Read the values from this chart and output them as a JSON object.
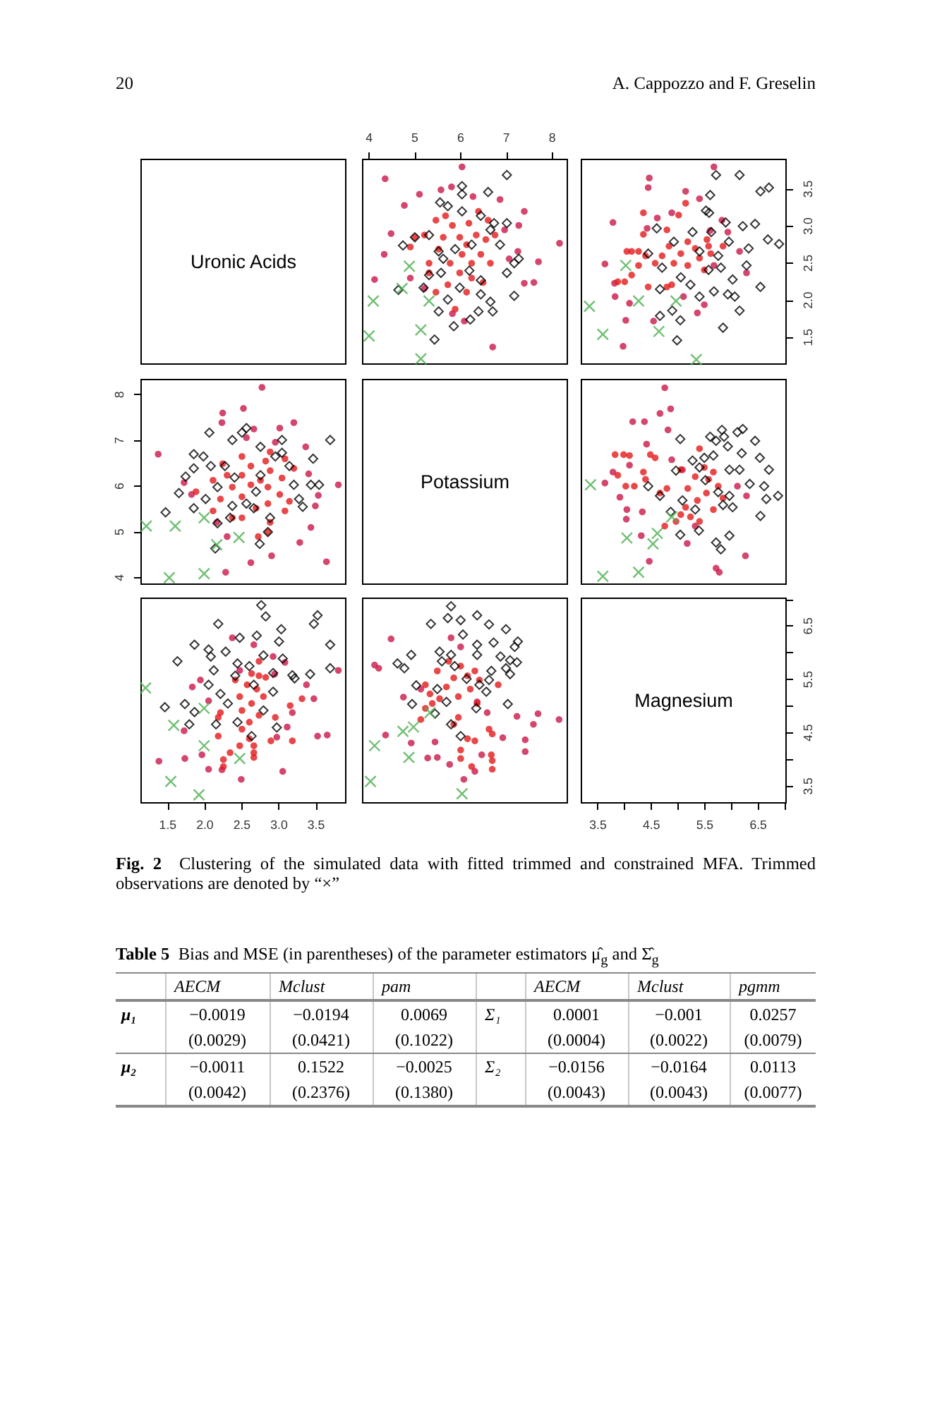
{
  "chart_data": [
    {
      "type": "other",
      "annotations": [
        "20",
        "A. Cappozzo and F. Greselin"
      ]
    },
    {
      "type": "other",
      "title": "Uronic Acids"
    },
    {
      "type": "scatter",
      "xlim": [
        3.86,
        8.33
      ],
      "xticks": [
        4,
        5,
        6,
        7,
        8
      ],
      "ylim": [
        1.14,
        3.9
      ],
      "tick_labels": "x",
      "series": [
        {
          "color": "#c9184a",
          "marker": "circle",
          "x": [
            4.35,
            6.03,
            5.1,
            4.77,
            4.48,
            4.33,
            4.12,
            5.8,
            6.27,
            7.39,
            7.27,
            8.16,
            7.7,
            7.6,
            7.39,
            7.25,
            6.7,
            6.86,
            5.57,
            4.9,
            5.82,
            6.08,
            5.21,
            6.96,
            7.06
          ],
          "values": [
            3.64,
            3.8,
            3.43,
            3.28,
            2.9,
            2.62,
            2.28,
            3.53,
            3.4,
            3.2,
            3.01,
            2.77,
            2.52,
            2.24,
            2.23,
            2.66,
            1.37,
            3.36,
            3.49,
            2.3,
            1.82,
            1.72,
            2.16,
            2.95,
            2.56
          ]
        },
        {
          "color": "#e41a1c",
          "marker": "circle",
          "x": [
            5.0,
            5.21,
            5.46,
            5.67,
            5.82,
            5.98,
            6.13,
            6.34,
            6.44,
            6.65,
            5.52,
            5.31,
            5.77,
            5.98,
            6.24,
            6.49,
            5.72,
            5.46,
            6.13,
            6.39,
            6.6,
            6.75,
            6.03,
            4.9,
            5.31,
            5.88,
            6.24,
            6.55,
            5.62,
            6.18
          ],
          "values": [
            2.85,
            2.88,
            3.08,
            3.14,
            3.01,
            2.85,
            2.75,
            2.88,
            2.62,
            2.5,
            2.69,
            2.5,
            2.5,
            2.37,
            2.3,
            2.24,
            2.21,
            2.11,
            2.11,
            3.2,
            3.08,
            2.88,
            2.62,
            2.72,
            2.37,
            1.88,
            2.5,
            2.82,
            2.85,
            3.04
          ]
        },
        {
          "color": "#000000",
          "marker": "diamond",
          "x": [
            7.01,
            6.03,
            6.03,
            6.6,
            5.55,
            5.72,
            6.44,
            6.73,
            7.01,
            5.0,
            4.74,
            5.31,
            5.52,
            6.24,
            6.65,
            7.27,
            7.17,
            7.01,
            5.31,
            5.57,
            5.19,
            4.64,
            5.98,
            6.44,
            6.65,
            7.17,
            5.52,
            5.85,
            6.21,
            6.39,
            6.7,
            5.43,
            6.19,
            5.88,
            6.44,
            5.62,
            6.03,
            6.86,
            5.72
          ],
          "values": [
            3.69,
            3.54,
            3.43,
            3.46,
            3.32,
            3.27,
            3.14,
            3.04,
            3.04,
            2.85,
            2.74,
            2.88,
            2.66,
            2.75,
            2.95,
            2.56,
            2.5,
            2.37,
            2.34,
            2.37,
            2.17,
            2.14,
            2.17,
            2.08,
            1.98,
            2.06,
            1.85,
            1.65,
            1.74,
            1.85,
            1.85,
            1.47,
            2.4,
            2.69,
            2.27,
            2.56,
            3.2,
            2.75,
            2.01
          ]
        },
        {
          "color": "#4caf50",
          "marker": "cross",
          "x": [
            4.88,
            4.09,
            5.31,
            4.0,
            5.13,
            5.13,
            4.72
          ],
          "values": [
            2.46,
            1.99,
            1.99,
            1.52,
            1.6,
            1.21,
            2.16
          ]
        }
      ]
    },
    {
      "type": "scatter",
      "xlim": [
        3.19,
        7.02
      ],
      "ylim": [
        1.14,
        3.9
      ],
      "yticks": [
        1.5,
        {
          "value": 2,
          "label": "2.0"
        },
        2.5,
        {
          "value": 3,
          "label": "3.0"
        },
        3.5
      ],
      "tick_labels": "y",
      "series": [
        {
          "color": "#c9184a",
          "marker": "circle",
          "x": [
            5.67,
            4.46,
            4.44,
            3.63,
            3.78,
            4.61,
            4.42,
            4.02,
            3.97,
            4.54,
            5.36,
            5.49,
            5.67,
            5.93,
            5.82,
            6.28,
            6.15,
            3.82,
            4.09,
            5.14,
            5.4,
            4.88,
            5.1,
            5.6,
            3.81
          ],
          "values": [
            3.8,
            3.65,
            3.52,
            2.49,
            3.05,
            3.11,
            2.97,
            1.73,
            1.38,
            1.72,
            1.83,
            1.94,
            2.47,
            2.92,
            3.08,
            2.37,
            2.66,
            2.05,
            1.96,
            3.47,
            3.37,
            3.18,
            2.05,
            2.94,
            2.23
          ]
        },
        {
          "color": "#e41a1c",
          "marker": "circle",
          "x": [
            3.87,
            4.0,
            4.13,
            4.04,
            4.13,
            4.26,
            4.39,
            4.35,
            4.35,
            4.57,
            4.7,
            4.79,
            4.83,
            4.92,
            5.05,
            5.18,
            5.32,
            5.4,
            5.54,
            5.57,
            5.61,
            5.49,
            5.18,
            4.88,
            4.44,
            4.26,
            5.14,
            5.01,
            4.79,
            5.84
          ],
          "values": [
            2.25,
            2.25,
            2.34,
            2.66,
            2.66,
            2.66,
            2.6,
            3.18,
            2.89,
            2.5,
            2.6,
            2.95,
            2.73,
            2.5,
            2.63,
            2.79,
            2.7,
            2.57,
            2.82,
            2.73,
            2.63,
            2.41,
            2.47,
            2.21,
            2.18,
            2.47,
            3.31,
            3.15,
            2.18,
            2.73
          ]
        },
        {
          "color": "#000000",
          "marker": "diamond",
          "x": [
            5.71,
            6.15,
            6.54,
            6.7,
            5.6,
            5.52,
            5.58,
            5.89,
            6.21,
            6.44,
            4.6,
            4.92,
            5.27,
            5.62,
            5.4,
            5.75,
            5.95,
            6.32,
            6.68,
            6.89,
            4.44,
            4.7,
            5.05,
            5.57,
            5.8,
            6.02,
            6.28,
            4.66,
            5.23,
            5.67,
            5.93,
            6.06,
            6.54,
            4.66,
            4.89,
            5.04,
            4.98,
            5.84,
            6.15,
            5.4
          ],
          "values": [
            3.69,
            3.69,
            3.47,
            3.52,
            3.42,
            3.21,
            3.18,
            3.05,
            3.0,
            3.03,
            2.97,
            2.79,
            2.92,
            2.92,
            2.66,
            2.6,
            2.79,
            2.7,
            2.82,
            2.76,
            2.63,
            2.44,
            2.31,
            2.41,
            2.44,
            2.28,
            2.47,
            2.15,
            2.21,
            2.12,
            2.08,
            2.05,
            2.18,
            1.79,
            1.86,
            1.73,
            1.46,
            1.63,
            1.86,
            2.05
          ]
        },
        {
          "color": "#4caf50",
          "marker": "cross",
          "x": [
            3.34,
            3.59,
            4.64,
            5.34,
            4.02,
            4.26,
            4.96
          ],
          "values": [
            1.92,
            1.54,
            1.58,
            1.2,
            2.47,
            1.99,
            1.99
          ]
        }
      ]
    },
    {
      "type": "scatter",
      "xlim": [
        1.14,
        3.9
      ],
      "ylim": [
        3.86,
        8.33
      ],
      "yticks": [
        4,
        5,
        6,
        7,
        8
      ],
      "tick_labels": "y",
      "series": [
        {
          "color": "#c9184a",
          "marker": "circle",
          "x": [
            3.64,
            3.8,
            3.43,
            3.28,
            2.9,
            2.62,
            2.28,
            3.53,
            3.4,
            3.2,
            3.01,
            2.77,
            2.52,
            2.24,
            2.23,
            2.66,
            1.37,
            3.36,
            3.49,
            2.3,
            1.82,
            1.72,
            2.16,
            2.95,
            2.56
          ],
          "values": [
            4.35,
            6.03,
            5.1,
            4.77,
            4.48,
            4.33,
            4.12,
            5.8,
            6.27,
            7.39,
            7.27,
            8.16,
            7.7,
            7.6,
            7.39,
            7.25,
            6.7,
            6.86,
            5.57,
            4.9,
            5.82,
            6.08,
            5.21,
            6.96,
            7.06
          ]
        },
        {
          "color": "#e41a1c",
          "marker": "circle",
          "x": [
            2.85,
            2.88,
            3.08,
            3.14,
            3.01,
            2.85,
            2.75,
            2.88,
            2.62,
            2.5,
            2.69,
            2.5,
            2.5,
            2.37,
            2.3,
            2.24,
            2.21,
            2.11,
            2.11,
            3.2,
            3.08,
            2.88,
            2.62,
            2.72,
            2.37,
            1.88,
            2.5,
            2.82,
            2.85,
            3.04
          ],
          "values": [
            5.0,
            5.21,
            5.46,
            5.67,
            5.82,
            5.98,
            6.13,
            6.34,
            6.44,
            6.65,
            5.52,
            5.31,
            5.77,
            5.98,
            6.24,
            6.49,
            5.72,
            5.46,
            6.13,
            6.39,
            6.6,
            6.75,
            6.03,
            4.9,
            5.31,
            5.88,
            6.24,
            6.55,
            5.62,
            6.18
          ]
        },
        {
          "color": "#000000",
          "marker": "diamond",
          "x": [
            3.69,
            3.54,
            3.43,
            3.46,
            3.32,
            3.27,
            3.14,
            3.04,
            3.04,
            2.85,
            2.74,
            2.88,
            2.66,
            2.75,
            2.95,
            2.56,
            2.5,
            2.37,
            2.34,
            2.37,
            2.17,
            2.14,
            2.17,
            2.08,
            1.98,
            2.06,
            1.85,
            1.65,
            1.74,
            1.85,
            1.85,
            1.47,
            2.4,
            2.69,
            2.27,
            2.56,
            3.2,
            2.75,
            2.01
          ],
          "values": [
            7.01,
            6.03,
            6.03,
            6.6,
            5.55,
            5.72,
            6.44,
            6.73,
            7.01,
            5.0,
            4.74,
            5.31,
            5.52,
            6.24,
            6.65,
            7.27,
            7.17,
            7.01,
            5.31,
            5.57,
            5.19,
            4.64,
            5.98,
            6.44,
            6.65,
            7.17,
            5.52,
            5.85,
            6.21,
            6.39,
            6.7,
            5.43,
            6.19,
            5.88,
            6.44,
            5.62,
            6.03,
            6.86,
            5.72
          ]
        },
        {
          "color": "#4caf50",
          "marker": "cross",
          "x": [
            2.46,
            1.99,
            1.99,
            1.52,
            1.6,
            1.21,
            2.16
          ],
          "values": [
            4.88,
            4.09,
            5.31,
            4.0,
            5.13,
            5.13,
            4.72
          ]
        }
      ]
    },
    {
      "type": "other",
      "title": "Potassium"
    },
    {
      "type": "scatter",
      "xlim": [
        3.19,
        7.02
      ],
      "ylim": [
        3.86,
        8.33
      ],
      "tick_labels": false,
      "series": [
        {
          "color": "#c9184a",
          "marker": "circle",
          "x": [
            4.75,
            4.86,
            4.66,
            4.15,
            4.37,
            4.81,
            4.41,
            4.88,
            4.09,
            3.78,
            3.63,
            4.04,
            4.33,
            3.91,
            4.03,
            4.31,
            4.46,
            5.17,
            5.71,
            5.77,
            6.26,
            5.08,
            6.11,
            6.28,
            5.32
          ],
          "values": [
            8.15,
            7.69,
            7.59,
            7.41,
            7.41,
            7.23,
            6.92,
            6.58,
            6.46,
            6.31,
            6.07,
            5.49,
            5.44,
            5.76,
            5.28,
            4.92,
            4.36,
            4.75,
            4.21,
            4.12,
            4.48,
            6.36,
            6.0,
            5.79,
            5.13
          ]
        },
        {
          "color": "#e41a1c",
          "marker": "circle",
          "x": [
            3.82,
            3.98,
            4.09,
            4.48,
            4.57,
            4.35,
            4.39,
            4.18,
            4.02,
            3.87,
            4.79,
            5.05,
            5.18,
            5.32,
            5.4,
            5.49,
            5.57,
            5.66,
            5.75,
            5.53,
            5.36,
            5.14,
            5.05,
            5.23,
            4.96,
            5.66,
            5.84,
            4.66,
            4.75,
            5.4
          ],
          "values": [
            6.69,
            6.69,
            6.67,
            6.69,
            6.62,
            6.31,
            6.15,
            6.0,
            6.0,
            6.24,
            5.95,
            6.36,
            5.95,
            6.21,
            6.82,
            6.41,
            6.15,
            6.31,
            6.0,
            5.85,
            5.69,
            5.54,
            5.38,
            5.33,
            5.23,
            5.49,
            5.74,
            5.85,
            5.13,
            5.23
          ]
        },
        {
          "color": "#000000",
          "marker": "diamond",
          "x": [
            5.82,
            5.86,
            6.11,
            6.21,
            5.6,
            5.71,
            6.44,
            5.04,
            5.93,
            6.19,
            6.53,
            5.49,
            5.66,
            5.27,
            5.4,
            4.96,
            5.96,
            6.15,
            6.7,
            6.34,
            6.61,
            6.87,
            6.65,
            4.44,
            4.66,
            5.75,
            5.96,
            5.84,
            6.02,
            6.54,
            5.08,
            4.86,
            5.32,
            5.04,
            5.39,
            5.96,
            5.71,
            5.8,
            5.51
          ],
          "values": [
            7.23,
            7.08,
            7.18,
            7.25,
            7.08,
            6.99,
            6.99,
            7.03,
            6.87,
            6.72,
            6.62,
            6.62,
            6.67,
            6.56,
            6.41,
            6.34,
            6.36,
            6.36,
            6.36,
            6.05,
            6.0,
            5.79,
            5.72,
            6.0,
            5.79,
            5.87,
            5.79,
            5.59,
            5.54,
            5.35,
            5.69,
            5.44,
            5.49,
            4.94,
            5.03,
            4.92,
            4.77,
            4.62,
            6.13
          ]
        },
        {
          "color": "#4caf50",
          "marker": "cross",
          "x": [
            3.36,
            4.04,
            4.53,
            3.59,
            4.26,
            4.61,
            4.88
          ],
          "values": [
            6.03,
            4.87,
            4.74,
            4.03,
            4.12,
            4.97,
            5.33
          ]
        }
      ]
    },
    {
      "type": "scatter",
      "xlim": [
        1.14,
        3.9
      ],
      "xticks": [
        1.5,
        {
          "value": 2,
          "label": "2.0"
        },
        2.5,
        {
          "value": 3,
          "label": "3.0"
        },
        3.5
      ],
      "ylim": [
        3.19,
        7.02
      ],
      "tick_labels": "x",
      "series": [
        {
          "color": "#c9184a",
          "marker": "circle",
          "x": [
            3.8,
            3.65,
            3.52,
            2.49,
            3.05,
            3.11,
            2.97,
            1.73,
            1.38,
            1.72,
            1.83,
            1.94,
            2.47,
            2.92,
            3.08,
            2.37,
            2.66,
            2.05,
            1.96,
            3.47,
            3.37,
            3.18,
            2.05,
            2.94,
            2.23
          ],
          "values": [
            5.67,
            4.46,
            4.44,
            3.63,
            3.78,
            4.61,
            4.42,
            4.02,
            3.97,
            4.54,
            5.36,
            5.49,
            5.67,
            5.93,
            5.82,
            6.28,
            6.15,
            3.82,
            4.09,
            5.14,
            5.4,
            4.88,
            5.1,
            5.6,
            3.81
          ]
        },
        {
          "color": "#e41a1c",
          "marker": "circle",
          "x": [
            2.25,
            2.25,
            2.34,
            2.66,
            2.66,
            2.66,
            2.6,
            3.18,
            2.89,
            2.5,
            2.6,
            2.95,
            2.73,
            2.5,
            2.63,
            2.79,
            2.7,
            2.57,
            2.82,
            2.73,
            2.63,
            2.41,
            2.47,
            2.21,
            2.18,
            2.47,
            3.31,
            3.15,
            2.18,
            2.73
          ],
          "values": [
            3.87,
            4.0,
            4.13,
            4.04,
            4.13,
            4.26,
            4.39,
            4.35,
            4.35,
            4.57,
            4.7,
            4.79,
            4.83,
            4.92,
            5.05,
            5.18,
            5.32,
            5.4,
            5.54,
            5.57,
            5.61,
            5.49,
            5.18,
            4.88,
            4.44,
            4.26,
            5.14,
            5.01,
            4.79,
            5.84
          ]
        },
        {
          "color": "#000000",
          "marker": "diamond",
          "x": [
            3.69,
            3.69,
            3.47,
            3.52,
            3.42,
            3.21,
            3.18,
            3.05,
            3.0,
            3.03,
            2.97,
            2.79,
            2.92,
            2.92,
            2.66,
            2.6,
            2.79,
            2.7,
            2.82,
            2.76,
            2.63,
            2.44,
            2.31,
            2.41,
            2.44,
            2.28,
            2.47,
            2.15,
            2.21,
            2.12,
            2.08,
            2.05,
            2.18,
            1.79,
            1.86,
            1.73,
            1.46,
            1.63,
            1.86,
            2.05
          ],
          "values": [
            5.71,
            6.15,
            6.54,
            6.7,
            5.6,
            5.52,
            5.58,
            5.89,
            6.21,
            6.44,
            4.6,
            4.92,
            5.27,
            5.62,
            5.4,
            5.75,
            5.95,
            6.32,
            6.68,
            6.89,
            4.44,
            4.7,
            5.05,
            5.57,
            5.8,
            6.02,
            6.28,
            4.66,
            5.23,
            5.67,
            5.93,
            6.06,
            6.54,
            4.66,
            4.89,
            5.04,
            4.98,
            5.84,
            6.15,
            5.4
          ]
        },
        {
          "color": "#4caf50",
          "marker": "cross",
          "x": [
            1.92,
            1.54,
            1.58,
            1.2,
            2.47,
            1.99,
            1.99
          ],
          "values": [
            3.34,
            3.59,
            4.64,
            5.34,
            4.02,
            4.26,
            4.96
          ]
        }
      ]
    },
    {
      "type": "scatter",
      "xlim": [
        3.86,
        8.33
      ],
      "ylim": [
        3.19,
        7.02
      ],
      "tick_labels": false,
      "series": [
        {
          "color": "#c9184a",
          "marker": "circle",
          "x": [
            8.15,
            7.69,
            7.59,
            7.41,
            7.41,
            7.23,
            6.92,
            6.58,
            6.46,
            6.31,
            6.07,
            5.49,
            5.44,
            5.76,
            5.28,
            4.92,
            4.36,
            4.75,
            4.21,
            4.12,
            4.48,
            6.36,
            6.0,
            5.79,
            5.13
          ],
          "values": [
            4.75,
            4.86,
            4.66,
            4.15,
            4.37,
            4.81,
            4.41,
            4.88,
            4.09,
            3.78,
            3.63,
            4.04,
            4.33,
            3.91,
            4.03,
            4.31,
            4.46,
            5.17,
            5.71,
            5.77,
            6.26,
            5.08,
            6.11,
            6.28,
            5.32
          ]
        },
        {
          "color": "#e41a1c",
          "marker": "circle",
          "x": [
            6.69,
            6.69,
            6.67,
            6.69,
            6.62,
            6.31,
            6.15,
            6.0,
            6.0,
            6.24,
            5.95,
            6.36,
            5.95,
            6.21,
            6.82,
            6.41,
            6.15,
            6.31,
            6.0,
            5.85,
            5.69,
            5.54,
            5.38,
            5.33,
            5.23,
            5.49,
            5.74,
            5.85,
            5.13,
            5.23
          ],
          "values": [
            3.82,
            3.98,
            4.09,
            4.48,
            4.57,
            4.35,
            4.39,
            4.18,
            4.02,
            3.87,
            4.79,
            5.05,
            5.18,
            5.32,
            5.4,
            5.49,
            5.57,
            5.66,
            5.75,
            5.53,
            5.36,
            5.14,
            5.05,
            5.23,
            4.96,
            5.66,
            5.84,
            4.66,
            4.75,
            5.4
          ]
        },
        {
          "color": "#000000",
          "marker": "diamond",
          "x": [
            7.23,
            7.08,
            7.18,
            7.25,
            7.08,
            6.99,
            6.99,
            7.03,
            6.87,
            6.72,
            6.62,
            6.62,
            6.67,
            6.56,
            6.41,
            6.34,
            6.36,
            6.36,
            6.36,
            6.05,
            6.0,
            5.79,
            5.72,
            6.0,
            5.79,
            5.87,
            5.79,
            5.59,
            5.54,
            5.35,
            5.69,
            5.44,
            5.49,
            4.94,
            5.03,
            4.92,
            4.77,
            4.62,
            6.13
          ],
          "values": [
            5.82,
            5.86,
            6.11,
            6.21,
            5.6,
            5.71,
            6.44,
            5.04,
            5.93,
            6.19,
            6.53,
            5.49,
            5.66,
            5.27,
            5.4,
            4.96,
            5.96,
            6.15,
            6.7,
            6.34,
            6.61,
            6.87,
            6.65,
            4.44,
            4.66,
            5.75,
            5.96,
            5.84,
            6.02,
            6.54,
            5.08,
            4.86,
            5.32,
            5.04,
            5.39,
            5.96,
            5.71,
            5.8,
            5.51
          ]
        },
        {
          "color": "#4caf50",
          "marker": "cross",
          "x": [
            6.03,
            4.87,
            4.74,
            4.03,
            4.12,
            4.97,
            5.33
          ],
          "values": [
            3.36,
            4.04,
            4.53,
            3.59,
            4.26,
            4.61,
            4.88
          ]
        }
      ]
    },
    {
      "type": "scatter",
      "title": "Magnesium",
      "xlim": [
        3.19,
        7.02
      ],
      "xticks": [
        3.5,
        {
          "value": 4,
          "label": null
        },
        4.5,
        {
          "value": 5,
          "label": null
        },
        5.5,
        {
          "value": 6,
          "label": null
        },
        6.5,
        {
          "value": 7,
          "label": null
        }
      ],
      "ylim": [
        3.19,
        7.02
      ],
      "yticks": [
        3.5,
        {
          "value": 4,
          "label": null
        },
        4.5,
        {
          "value": 5,
          "label": null
        },
        5.5,
        {
          "value": 6,
          "label": null
        },
        6.5,
        {
          "value": 7,
          "label": null
        }
      ]
    },
    {
      "type": "other",
      "title": "Fig. 2",
      "annotations": [
        "Clustering of the simulated data with fitted trimmed and constrained MFA. Trimmed observations are denoted by “×”"
      ]
    },
    {
      "type": "other",
      "title": "Table 5",
      "subtitle": "Bias and MSE (in parentheses) of the parameter estimators μ̂$_{g}$ and Σ̂$_{g}$",
      "categories": [
        null,
        "AECM",
        "Mclust",
        "pam",
        null,
        "AECM",
        "Mclust",
        "pgmm"
      ],
      "cell_labels": [
        [
          "μ₁",
          "−0.0019",
          "−0.0194",
          "0.0069",
          "Σ₁",
          "0.0001",
          "−0.001",
          "0.0257"
        ],
        [
          null,
          "(0.0029)",
          "(0.0421)",
          "(0.1022)",
          null,
          "(0.0004)",
          "(0.0022)",
          "(0.0079)"
        ],
        [
          "μ₂",
          "−0.0011",
          "0.1522",
          "−0.0025",
          "Σ₂",
          "−0.0156",
          "−0.0164",
          "0.0113"
        ],
        [
          null,
          "(0.0042)",
          "(0.2376)",
          "(0.1380)",
          null,
          "(0.0043)",
          "(0.0043)",
          "(0.0077)"
        ]
      ]
    }
  ]
}
